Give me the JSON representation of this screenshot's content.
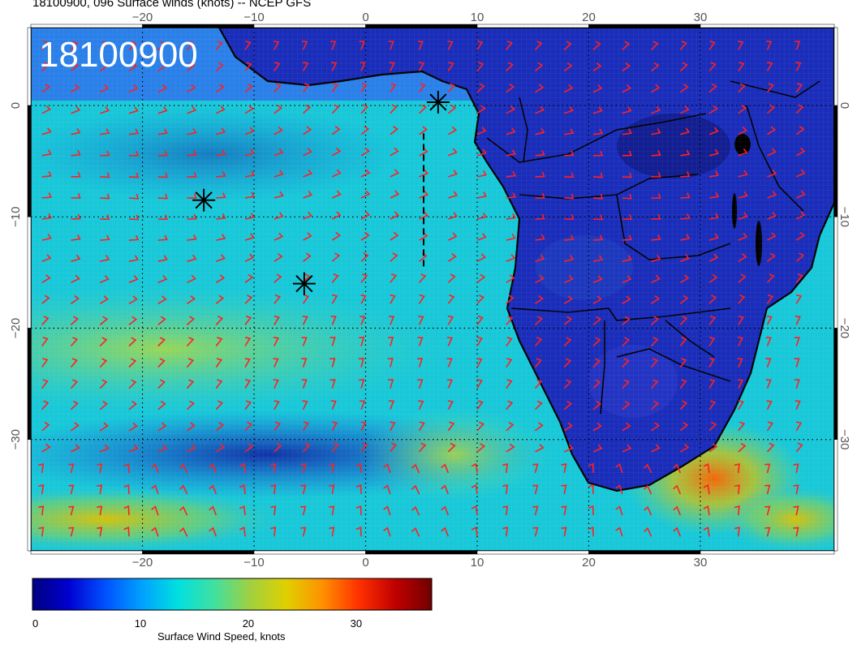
{
  "title": "18100900, 096 Surface winds (knots) -- NCEP GFS",
  "stamp": "18100900",
  "map": {
    "lon_range": [
      -30,
      42
    ],
    "lat_range": [
      -40,
      7
    ],
    "x_ticks": [
      "−20",
      "−10",
      "0",
      "10",
      "20",
      "30"
    ],
    "x_tick_values": [
      -20,
      -10,
      0,
      10,
      20,
      30
    ],
    "y_ticks": [
      "0",
      "−10",
      "−20",
      "−30"
    ],
    "y_tick_values": [
      0,
      -10,
      -20,
      -30
    ],
    "graticule": "dotted",
    "barb_color": "#ff2020",
    "markers": [
      {
        "lon": 6.5,
        "lat": 0.3
      },
      {
        "lon": -14.5,
        "lat": -8.5
      },
      {
        "lon": -5.5,
        "lat": -16.0
      }
    ],
    "dashed_track": {
      "lon": 5.2,
      "lat_from": -2.5,
      "lat_to": -14.5
    }
  },
  "colorbar": {
    "title": "Surface Wind Speed, knots",
    "tick_labels": [
      "0",
      "10",
      "20",
      "30"
    ],
    "tick_values": [
      0,
      10,
      20,
      30
    ],
    "range": [
      0,
      37
    ],
    "colors": [
      "#000080",
      "#0000d0",
      "#0050ff",
      "#00a0ff",
      "#00e0e0",
      "#40e0a0",
      "#a0d040",
      "#e0d000",
      "#ff9000",
      "#ff3000",
      "#c00000",
      "#700000"
    ]
  }
}
